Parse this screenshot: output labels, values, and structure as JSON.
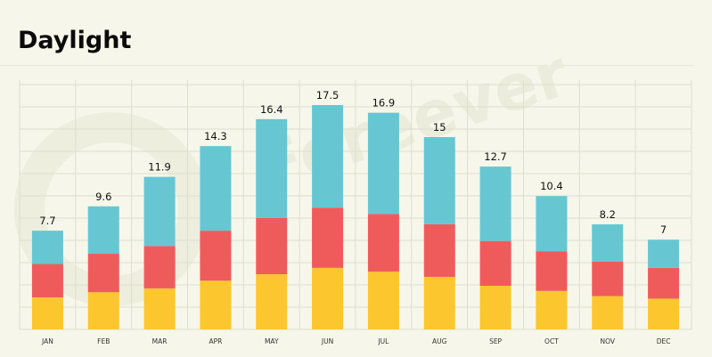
{
  "colors": {
    "background": "#f6f6ea",
    "grid": "#dedecf",
    "bottom_segment": "#fbc62e",
    "middle_segment": "#ef5b5b",
    "top_segment": "#66c7d2"
  },
  "chart_data": {
    "type": "bar",
    "stacked": true,
    "title": "Daylight",
    "categories": [
      "JAN",
      "FEB",
      "MAR",
      "APR",
      "MAY",
      "JUN",
      "JUL",
      "AUG",
      "SEP",
      "OCT",
      "NOV",
      "DEC"
    ],
    "totals": [
      7.7,
      9.6,
      11.9,
      14.3,
      16.4,
      17.5,
      16.9,
      15,
      12.7,
      10.4,
      8.2,
      7
    ],
    "total_labels": [
      "7.7",
      "9.6",
      "11.9",
      "14.3",
      "16.4",
      "17.5",
      "16.9",
      "15",
      "12.7",
      "10.4",
      "8.2",
      "7"
    ],
    "series": [
      {
        "color": "#fbc62e",
        "values": [
          2.5,
          2.9,
          3.2,
          3.8,
          4.3,
          4.8,
          4.5,
          4.1,
          3.4,
          3.0,
          2.6,
          2.4
        ]
      },
      {
        "color": "#ef5b5b",
        "values": [
          2.6,
          3.0,
          3.3,
          3.9,
          4.4,
          4.7,
          4.5,
          4.1,
          3.5,
          3.1,
          2.7,
          2.4
        ]
      },
      {
        "color": "#66c7d2",
        "values": [
          2.6,
          3.7,
          5.4,
          6.6,
          7.7,
          8.0,
          7.9,
          6.8,
          5.8,
          4.3,
          2.9,
          2.2
        ]
      }
    ],
    "ylim": [
      0,
      17.5
    ],
    "xlabel": "",
    "ylabel": "",
    "grid": true,
    "legend": "none"
  }
}
